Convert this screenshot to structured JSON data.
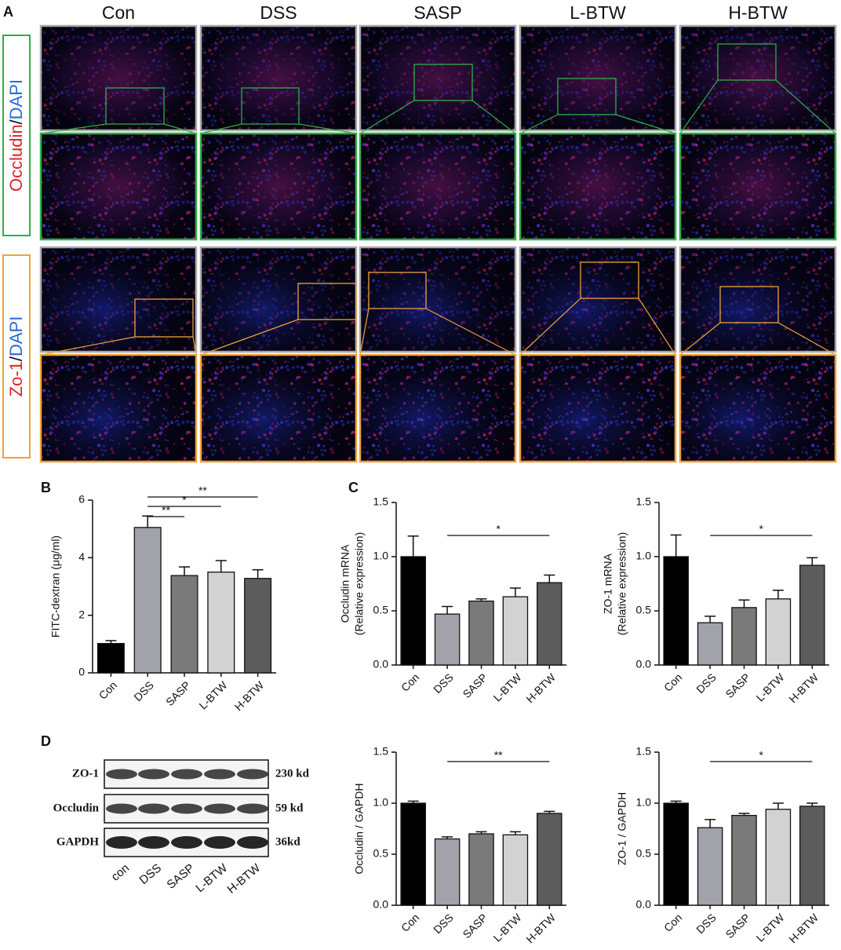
{
  "panel_labels": [
    "A",
    "B",
    "C",
    "D"
  ],
  "microscopy": {
    "groups": [
      "Con",
      "DSS",
      "SASP",
      "L-BTW",
      "H-BTW"
    ],
    "rows": [
      {
        "label_parts": [
          "Occludin",
          "/",
          "DAPI"
        ]
      },
      {
        "label_parts": [
          "Zo-1",
          "/",
          "DAPI"
        ]
      }
    ]
  },
  "western_blot": {
    "bands": [
      {
        "protein": "ZO-1",
        "size": "230 kd"
      },
      {
        "protein": "Occludin",
        "size": "59 kd"
      },
      {
        "protein": "GAPDH",
        "size": "36kd"
      }
    ],
    "lanes": [
      "con",
      "DSS",
      "SASP",
      "L-BTW",
      "H-BTW"
    ]
  },
  "chart_data": [
    {
      "type": "bar",
      "ylabel": [
        "FITC-dextran (μg/ml)"
      ],
      "categories": [
        "Con",
        "DSS",
        "SASP",
        "L-BTW",
        "H-BTW"
      ],
      "values": [
        1.02,
        5.05,
        3.38,
        3.5,
        3.28
      ],
      "errors": [
        0.1,
        0.4,
        0.3,
        0.4,
        0.3
      ],
      "colors": [
        "#000000",
        "#a2a2ab",
        "#7a7a7a",
        "#d2d2d2",
        "#5c5c5c"
      ],
      "ylim": [
        0,
        6
      ],
      "yticks": [
        0,
        2,
        4,
        6
      ],
      "significance": [
        {
          "from": "DSS",
          "to": "SASP",
          "label": "**"
        },
        {
          "from": "DSS",
          "to": "L-BTW",
          "label": "*"
        },
        {
          "from": "DSS",
          "to": "H-BTW",
          "label": "**"
        }
      ]
    },
    {
      "type": "bar",
      "ylabel": [
        "Occludin mRNA",
        "(Relative expression)"
      ],
      "categories": [
        "Con",
        "DSS",
        "SASP",
        "L-BTW",
        "H-BTW"
      ],
      "values": [
        1.0,
        0.47,
        0.59,
        0.63,
        0.76
      ],
      "errors": [
        0.19,
        0.07,
        0.02,
        0.08,
        0.07
      ],
      "colors": [
        "#000000",
        "#a2a2ab",
        "#7a7a7a",
        "#d2d2d2",
        "#5c5c5c"
      ],
      "ylim": [
        0,
        1.5
      ],
      "yticks": [
        {
          "value": 0,
          "label": "0.0"
        },
        0.5,
        {
          "value": 1,
          "label": "1.0"
        },
        1.5
      ],
      "significance": [
        {
          "from": "DSS",
          "to": "H-BTW",
          "label": "*"
        }
      ]
    },
    {
      "type": "bar",
      "ylabel": [
        "ZO-1 mRNA",
        "(Relative expression)"
      ],
      "categories": [
        "Con",
        "DSS",
        "SASP",
        "L-BTW",
        "H-BTW"
      ],
      "values": [
        1.0,
        0.39,
        0.53,
        0.61,
        0.92
      ],
      "errors": [
        0.2,
        0.06,
        0.07,
        0.08,
        0.07
      ],
      "colors": [
        "#000000",
        "#a2a2ab",
        "#7a7a7a",
        "#d2d2d2",
        "#5c5c5c"
      ],
      "ylim": [
        0,
        1.5
      ],
      "yticks": [
        {
          "value": 0,
          "label": "0.0"
        },
        0.5,
        {
          "value": 1,
          "label": "1.0"
        },
        1.5
      ],
      "significance": [
        {
          "from": "DSS",
          "to": "H-BTW",
          "label": "*"
        }
      ]
    },
    {
      "type": "bar",
      "ylabel": [
        "Occludin / GAPDH"
      ],
      "categories": [
        "Con",
        "DSS",
        "SASP",
        "L-BTW",
        "H-BTW"
      ],
      "values": [
        1.0,
        0.65,
        0.7,
        0.69,
        0.9
      ],
      "errors": [
        0.02,
        0.02,
        0.02,
        0.03,
        0.02
      ],
      "colors": [
        "#000000",
        "#a2a2ab",
        "#7a7a7a",
        "#d2d2d2",
        "#5c5c5c"
      ],
      "ylim": [
        0,
        1.5
      ],
      "yticks": [
        {
          "value": 0,
          "label": "0.0"
        },
        0.5,
        {
          "value": 1,
          "label": "1.0"
        },
        1.5
      ],
      "significance": [
        {
          "from": "DSS",
          "to": "H-BTW",
          "label": "**"
        }
      ]
    },
    {
      "type": "bar",
      "ylabel": [
        "ZO-1 / GAPDH"
      ],
      "categories": [
        "Con",
        "DSS",
        "SASP",
        "L-BTW",
        "H-BTW"
      ],
      "values": [
        1.0,
        0.76,
        0.88,
        0.94,
        0.97
      ],
      "errors": [
        0.02,
        0.08,
        0.02,
        0.06,
        0.03
      ],
      "colors": [
        "#000000",
        "#a2a2ab",
        "#7a7a7a",
        "#d2d2d2",
        "#5c5c5c"
      ],
      "ylim": [
        0,
        1.5
      ],
      "yticks": [
        {
          "value": 0,
          "label": "0.0"
        },
        0.5,
        {
          "value": 1,
          "label": "1.0"
        },
        1.5
      ],
      "significance": [
        {
          "from": "DSS",
          "to": "H-BTW",
          "label": "*"
        }
      ]
    }
  ]
}
